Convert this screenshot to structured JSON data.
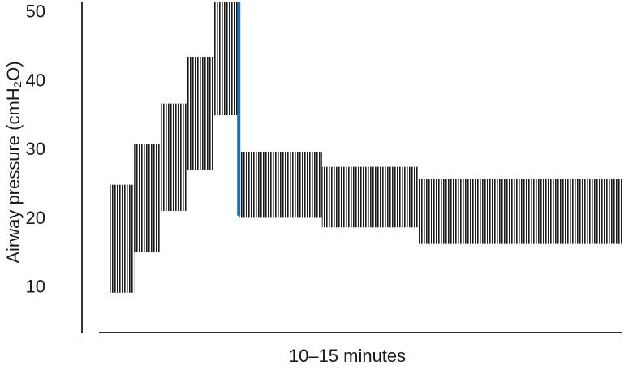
{
  "chart_data": {
    "type": "range_bar",
    "ylabel": "Airway pressure (cmH₂O)",
    "xlabel": "10–15 minutes",
    "bins": [
      1.9,
      6.7,
      11.8,
      16.7,
      21.9,
      26.7,
      42.6,
      61,
      100
    ],
    "lows": [
      9.3,
      15.2,
      21.2,
      27.2,
      35.1,
      20.2,
      18.8,
      16.4
    ],
    "highs": [
      25,
      30.9,
      36.8,
      43.6,
      51.5,
      29.8,
      27.6,
      25.8
    ],
    "color": "#1a1a1a",
    "marker": {
      "x": 26.7,
      "low": 20.5,
      "high": 51.5,
      "color": "#1f6fb5"
    },
    "xlim": [
      0,
      100
    ],
    "ylim": [
      3.5,
      51.5
    ],
    "yticks": [
      10,
      20,
      30,
      40,
      50
    ],
    "grid": false
  }
}
